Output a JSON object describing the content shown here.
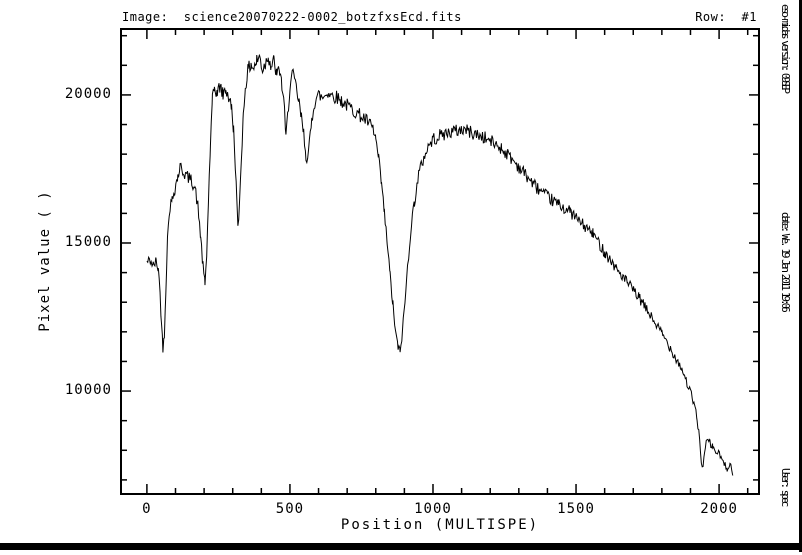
{
  "window": {
    "background": "#ffffff",
    "foreground": "#000000"
  },
  "header": {
    "image_label": "Image:  science20070222-0002_botzfxsEcd.fits",
    "row_label": "Row:  #1"
  },
  "sidebar": {
    "version_text": "eso-midas version: 09SEP",
    "date_text": "date: We. 19 Jan 2011 19:06",
    "user_text": "User: spec"
  },
  "chart_data": {
    "type": "line",
    "title": "",
    "xlabel": "Position (MULTISPE)",
    "ylabel": "Pixel value ( )",
    "xlim": [
      -94,
      2143
    ],
    "ylim": [
      6490,
      22260
    ],
    "x_major_ticks": [
      0,
      500,
      1000,
      1500,
      2000
    ],
    "x_minor_range": [
      0,
      2100
    ],
    "x_minor_step": 100,
    "y_major_ticks": [
      10000,
      15000,
      20000
    ],
    "y_minor_range": [
      7000,
      22000
    ],
    "y_minor_step": 1000,
    "grid": false,
    "legend": null,
    "line_color": "#000000",
    "frame_color": "#000000",
    "series": [
      {
        "name": "spectrum_row_1",
        "anchors": [
          [
            0,
            14350
          ],
          [
            12,
            14420
          ],
          [
            22,
            14230
          ],
          [
            32,
            14380
          ],
          [
            40,
            14150
          ],
          [
            46,
            13300
          ],
          [
            51,
            12300
          ],
          [
            56,
            11450
          ],
          [
            61,
            11950
          ],
          [
            66,
            13400
          ],
          [
            72,
            15100
          ],
          [
            78,
            16100
          ],
          [
            88,
            16450
          ],
          [
            98,
            16850
          ],
          [
            108,
            17250
          ],
          [
            116,
            17580
          ],
          [
            126,
            17420
          ],
          [
            136,
            17300
          ],
          [
            148,
            17180
          ],
          [
            158,
            17080
          ],
          [
            168,
            16850
          ],
          [
            178,
            16250
          ],
          [
            188,
            15200
          ],
          [
            196,
            14200
          ],
          [
            203,
            13600
          ],
          [
            209,
            14600
          ],
          [
            215,
            16400
          ],
          [
            222,
            18300
          ],
          [
            229,
            19800
          ],
          [
            236,
            20250
          ],
          [
            246,
            20050
          ],
          [
            256,
            20300
          ],
          [
            266,
            20000
          ],
          [
            276,
            20200
          ],
          [
            286,
            19900
          ],
          [
            296,
            19550
          ],
          [
            303,
            18800
          ],
          [
            309,
            17700
          ],
          [
            314,
            16500
          ],
          [
            318,
            15420
          ],
          [
            324,
            16400
          ],
          [
            330,
            17900
          ],
          [
            337,
            19300
          ],
          [
            344,
            20300
          ],
          [
            354,
            20850
          ],
          [
            364,
            21050
          ],
          [
            374,
            20900
          ],
          [
            384,
            21150
          ],
          [
            394,
            21300
          ],
          [
            404,
            20850
          ],
          [
            414,
            21050
          ],
          [
            424,
            21350
          ],
          [
            434,
            20950
          ],
          [
            444,
            21150
          ],
          [
            454,
            20650
          ],
          [
            464,
            20850
          ],
          [
            472,
            20300
          ],
          [
            478,
            19900
          ],
          [
            486,
            18500
          ],
          [
            492,
            19300
          ],
          [
            500,
            20300
          ],
          [
            508,
            20700
          ],
          [
            516,
            20500
          ],
          [
            524,
            20100
          ],
          [
            532,
            19700
          ],
          [
            540,
            19200
          ],
          [
            548,
            18700
          ],
          [
            556,
            18000
          ],
          [
            562,
            17800
          ],
          [
            568,
            18300
          ],
          [
            576,
            19100
          ],
          [
            584,
            19700
          ],
          [
            592,
            19900
          ],
          [
            600,
            20000
          ],
          [
            615,
            19900
          ],
          [
            630,
            20100
          ],
          [
            645,
            20000
          ],
          [
            660,
            19950
          ],
          [
            680,
            19800
          ],
          [
            700,
            19650
          ],
          [
            720,
            19500
          ],
          [
            740,
            19350
          ],
          [
            760,
            19200
          ],
          [
            775,
            19050
          ],
          [
            790,
            18850
          ],
          [
            800,
            18500
          ],
          [
            810,
            17800
          ],
          [
            820,
            17000
          ],
          [
            830,
            16000
          ],
          [
            840,
            15000
          ],
          [
            850,
            13900
          ],
          [
            860,
            12900
          ],
          [
            870,
            11900
          ],
          [
            878,
            11500
          ],
          [
            885,
            11300
          ],
          [
            893,
            12000
          ],
          [
            902,
            13000
          ],
          [
            912,
            14300
          ],
          [
            922,
            15400
          ],
          [
            935,
            16400
          ],
          [
            950,
            17300
          ],
          [
            965,
            17800
          ],
          [
            980,
            18200
          ],
          [
            1000,
            18500
          ],
          [
            1030,
            18650
          ],
          [
            1060,
            18750
          ],
          [
            1090,
            18800
          ],
          [
            1110,
            18850
          ],
          [
            1140,
            18700
          ],
          [
            1170,
            18600
          ],
          [
            1200,
            18450
          ],
          [
            1240,
            18200
          ],
          [
            1280,
            17800
          ],
          [
            1320,
            17350
          ],
          [
            1360,
            16900
          ],
          [
            1400,
            16550
          ],
          [
            1440,
            16300
          ],
          [
            1480,
            16050
          ],
          [
            1520,
            15650
          ],
          [
            1560,
            15300
          ],
          [
            1600,
            14700
          ],
          [
            1640,
            14150
          ],
          [
            1680,
            13650
          ],
          [
            1720,
            13150
          ],
          [
            1760,
            12550
          ],
          [
            1800,
            11950
          ],
          [
            1830,
            11450
          ],
          [
            1850,
            11100
          ],
          [
            1870,
            10750
          ],
          [
            1885,
            10350
          ],
          [
            1900,
            9950
          ],
          [
            1913,
            9550
          ],
          [
            1923,
            9050
          ],
          [
            1932,
            8350
          ],
          [
            1941,
            7350
          ],
          [
            1949,
            7900
          ],
          [
            1958,
            8350
          ],
          [
            1968,
            8250
          ],
          [
            1978,
            8100
          ],
          [
            1988,
            7950
          ],
          [
            1998,
            7900
          ],
          [
            2008,
            7750
          ],
          [
            2018,
            7500
          ],
          [
            2028,
            7400
          ],
          [
            2038,
            7600
          ],
          [
            2048,
            7150
          ]
        ],
        "noise": {
          "seed": 42,
          "amplitude_base": 60,
          "amplitude_scale": 0.009,
          "step": 3
        }
      }
    ]
  }
}
